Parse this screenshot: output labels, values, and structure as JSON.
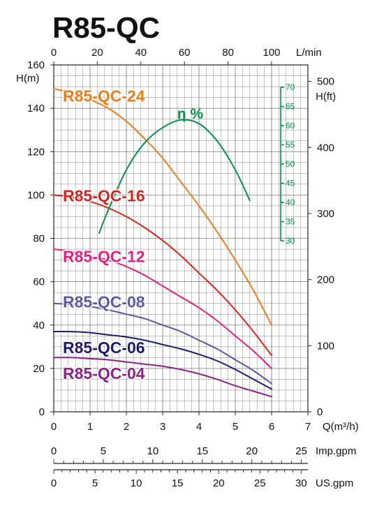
{
  "title": "R85-QC",
  "colors": {
    "text": "#111111",
    "grid": "#777777",
    "efficiency": "#0a8f4a"
  },
  "chart_data": {
    "type": "line",
    "title": "R85-QC",
    "grid": true,
    "axes": {
      "bottom": {
        "unit_label": "Q(m³/h)",
        "ticks": [
          0,
          1,
          2,
          3,
          4,
          5,
          6,
          7
        ],
        "range": [
          0,
          7
        ]
      },
      "top": {
        "unit_label": "L/min",
        "ticks": [
          0,
          20,
          40,
          60,
          80,
          100
        ],
        "range": [
          0,
          116.67
        ]
      },
      "left": {
        "unit_label": "H(m)",
        "ticks": [
          0,
          20,
          40,
          60,
          80,
          100,
          120,
          140,
          160
        ],
        "range": [
          0,
          160
        ]
      },
      "right": {
        "unit_label": "H(ft)",
        "ticks": [
          0,
          100,
          200,
          300,
          400,
          500
        ],
        "range": [
          0,
          524.9
        ]
      },
      "efficiency": {
        "unit_label": "η %",
        "ticks": [
          30,
          35,
          40,
          45,
          50,
          55,
          60,
          65,
          70
        ],
        "range": [
          30,
          70
        ]
      },
      "imp_gpm": {
        "unit_label": "Imp.gpm",
        "ticks": [
          0,
          5,
          10,
          15,
          20,
          25
        ],
        "range": [
          0,
          25.66
        ]
      },
      "us_gpm": {
        "unit_label": "US.gpm",
        "ticks": [
          0,
          5,
          10,
          15,
          20,
          25,
          30
        ],
        "range": [
          0,
          30.82
        ]
      }
    },
    "series": [
      {
        "name": "R85-QC-24",
        "color": "#e87d1e",
        "label_at": [
          0.25,
          146
        ],
        "x": [
          0,
          0.5,
          1,
          1.5,
          2,
          2.5,
          3,
          3.5,
          4,
          4.5,
          5,
          5.5,
          6
        ],
        "y": [
          149,
          147,
          144,
          140,
          134,
          126,
          117,
          106,
          95,
          83,
          70,
          56,
          40
        ]
      },
      {
        "name": "R85-QC-16",
        "color": "#d0281e",
        "label_at": [
          0.25,
          100
        ],
        "x": [
          0,
          0.5,
          1,
          1.5,
          2,
          2.5,
          3,
          3.5,
          4,
          4.5,
          5,
          5.5,
          6
        ],
        "y": [
          100,
          99,
          97,
          94,
          90,
          85,
          79,
          72,
          64,
          56,
          47,
          37,
          26
        ]
      },
      {
        "name": "R85-QC-12",
        "color": "#e0227e",
        "label_at": [
          0.25,
          72
        ],
        "x": [
          0,
          0.5,
          1,
          1.5,
          2,
          2.5,
          3,
          3.5,
          4,
          4.5,
          5,
          5.5,
          6
        ],
        "y": [
          75,
          74,
          72,
          70,
          67,
          63,
          58,
          53,
          48,
          42,
          35,
          28,
          20
        ]
      },
      {
        "name": "R85-QC-08",
        "color": "#5b5aa0",
        "label_at": [
          0.25,
          51
        ],
        "x": [
          0,
          0.5,
          1,
          1.5,
          2,
          2.5,
          3,
          3.5,
          4,
          4.5,
          5,
          5.5,
          6
        ],
        "y": [
          50,
          49.5,
          48.5,
          47,
          45,
          43,
          40,
          37,
          33,
          29,
          24,
          19,
          13
        ]
      },
      {
        "name": "R85-QC-06",
        "color": "#1c1c6e",
        "label_at": [
          0.25,
          30
        ],
        "x": [
          0,
          0.5,
          1,
          1.5,
          2,
          2.5,
          3,
          3.5,
          4,
          4.5,
          5,
          5.5,
          6
        ],
        "y": [
          37,
          37,
          36.5,
          35.5,
          34.5,
          33,
          31,
          29,
          26.5,
          23.5,
          19.5,
          15,
          10.5
        ]
      },
      {
        "name": "R85-QC-04",
        "color": "#8a2484",
        "label_at": [
          0.25,
          18
        ],
        "x": [
          0,
          0.5,
          1,
          1.5,
          2,
          2.5,
          3,
          3.5,
          4,
          4.5,
          5,
          5.5,
          6
        ],
        "y": [
          25,
          25,
          24.5,
          24,
          23,
          22,
          21,
          19.5,
          17.5,
          15,
          12,
          9.5,
          7
        ]
      },
      {
        "name": "η %",
        "axis": "efficiency",
        "color": "#0a8f4a",
        "label_at": [
          3.4,
          63.5
        ],
        "x": [
          1.25,
          1.5,
          2,
          2.5,
          3,
          3.5,
          4,
          4.5,
          5,
          5.4
        ],
        "y": [
          32,
          38,
          48.5,
          55.5,
          59.5,
          61.5,
          60.5,
          56,
          48.5,
          40.5
        ]
      }
    ]
  }
}
